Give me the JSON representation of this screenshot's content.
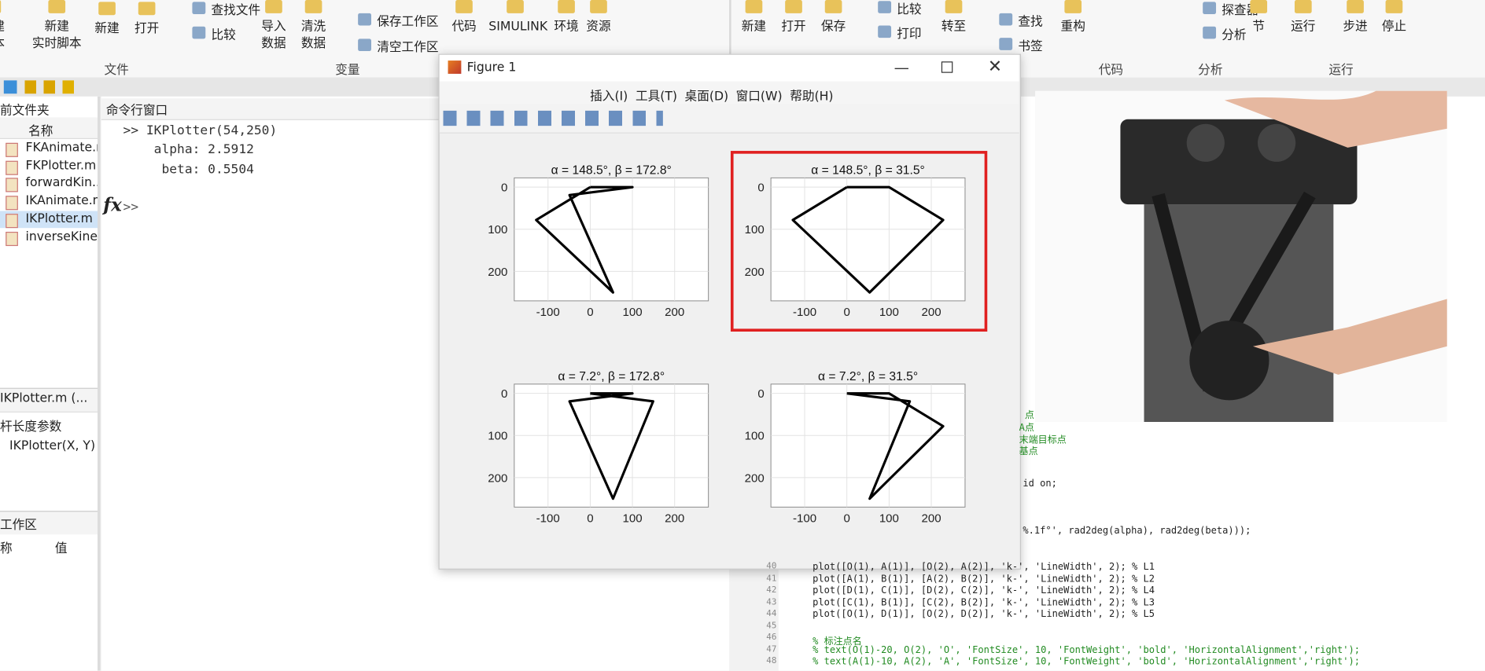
{
  "toolstrip": {
    "buttons": [
      "新建\n脚本",
      "新建\n实时脚本",
      "新建",
      "打开",
      "查找文件",
      "比较",
      "导入\n数据",
      "清洗\n数据",
      "保存工作区",
      "清空工作区",
      "代码",
      "SIMULINK",
      "环境",
      "资源",
      "新建",
      "打开",
      "保存",
      "比较",
      "打印",
      "转至",
      "查找",
      "书签",
      "重构",
      "探查器",
      "分析",
      "节",
      "运行",
      "步进",
      "停止"
    ],
    "sections": [
      "文件",
      "变量",
      "代码",
      "分析",
      "运行"
    ]
  },
  "files": {
    "title": "前文件夹",
    "column": "名称",
    "items": [
      "FKAnimate.m",
      "FKPlotter.m",
      "forwardKin...",
      "IKAnimate.m",
      "IKPlotter.m",
      "inverseKine..."
    ],
    "selected": 4
  },
  "details": {
    "title": "IKPlotter.m (...",
    "heading": "杆长度参数",
    "signature": "IKPlotter(X, Y)"
  },
  "workspace": {
    "title": "工作区",
    "columns": [
      "称",
      "值"
    ]
  },
  "command": {
    "title": "命令行窗口",
    "lines": [
      ">> IKPlotter(54,250)",
      "    alpha: 2.5912",
      "     beta: 0.5504"
    ],
    "fx": "fx",
    "prompt": ">>"
  },
  "figure": {
    "title": "Figure 1",
    "menus": [
      "插入(I)",
      "工具(T)",
      "桌面(D)",
      "窗口(W)",
      "帮助(H)"
    ]
  },
  "chart_data": [
    {
      "type": "line",
      "title": "α = 148.5°, β = 172.8°",
      "xlim": [
        -180,
        280
      ],
      "ylim": [
        -22,
        270
      ],
      "y_reversed": true,
      "xticks": [
        -100,
        0,
        100,
        200
      ],
      "yticks": [
        0,
        100,
        200
      ],
      "grid": true,
      "highlighted": false,
      "series": [
        {
          "color": "#000000",
          "x": [
            0,
            -128,
            54,
            -49,
            100,
            0
          ],
          "y": [
            0,
            78,
            250,
            19,
            0,
            0
          ]
        }
      ]
    },
    {
      "type": "line",
      "title": "α = 148.5°, β = 31.5°",
      "xlim": [
        -180,
        280
      ],
      "ylim": [
        -22,
        270
      ],
      "y_reversed": true,
      "xticks": [
        -100,
        0,
        100,
        200
      ],
      "yticks": [
        0,
        100,
        200
      ],
      "grid": true,
      "highlighted": true,
      "series": [
        {
          "color": "#000000",
          "x": [
            0,
            -128,
            54,
            228,
            100,
            0
          ],
          "y": [
            0,
            78,
            250,
            78,
            0,
            0
          ]
        }
      ]
    },
    {
      "type": "line",
      "title": "α = 7.2°, β = 172.8°",
      "xlim": [
        -180,
        280
      ],
      "ylim": [
        -22,
        270
      ],
      "y_reversed": true,
      "xticks": [
        -100,
        0,
        100,
        200
      ],
      "yticks": [
        0,
        100,
        200
      ],
      "grid": true,
      "highlighted": false,
      "series": [
        {
          "color": "#000000",
          "x": [
            0,
            149,
            54,
            -49,
            100,
            0
          ],
          "y": [
            0,
            19,
            250,
            19,
            0,
            0
          ]
        }
      ]
    },
    {
      "type": "line",
      "title": "α = 7.2°, β = 31.5°",
      "xlim": [
        -180,
        280
      ],
      "ylim": [
        -22,
        270
      ],
      "y_reversed": true,
      "xticks": [
        -100,
        0,
        100,
        200
      ],
      "yticks": [
        0,
        100,
        200
      ],
      "grid": true,
      "highlighted": false,
      "series": [
        {
          "color": "#000000",
          "x": [
            0,
            149,
            54,
            228,
            100,
            0
          ],
          "y": [
            0,
            19,
            250,
            78,
            0,
            0
          ]
        }
      ]
    }
  ],
  "editor": {
    "fragments": [
      "点",
      "A点",
      "末端目标点",
      "基点",
      "id on;",
      "%.1f°', rad2deg(alpha), rad2deg(beta)));"
    ],
    "lines": [
      {
        "n": 40,
        "code": "plot([O(1), A(1)], [O(2), A(2)], 'k-', 'LineWidth', 2); % L1"
      },
      {
        "n": 41,
        "code": "plot([A(1), B(1)], [A(2), B(2)], 'k-', 'LineWidth', 2); % L2"
      },
      {
        "n": 42,
        "code": "plot([D(1), C(1)], [D(2), C(2)], 'k-', 'LineWidth', 2); % L4"
      },
      {
        "n": 43,
        "code": "plot([C(1), B(1)], [C(2), B(2)], 'k-', 'LineWidth', 2); % L3"
      },
      {
        "n": 44,
        "code": "plot([O(1), D(1)], [O(2), D(2)], 'k-', 'LineWidth', 2); % L5"
      },
      {
        "n": 45,
        "code": ""
      },
      {
        "n": 46,
        "code": "% 标注点名"
      },
      {
        "n": 47,
        "code": "% text(O(1)-20, O(2), 'O', 'FontSize', 10, 'FontWeight', 'bold', 'HorizontalAlignment','right');"
      },
      {
        "n": 48,
        "code": "% text(A(1)-10, A(2), 'A', 'FontSize', 10, 'FontWeight', 'bold', 'HorizontalAlignment','right');"
      }
    ]
  }
}
